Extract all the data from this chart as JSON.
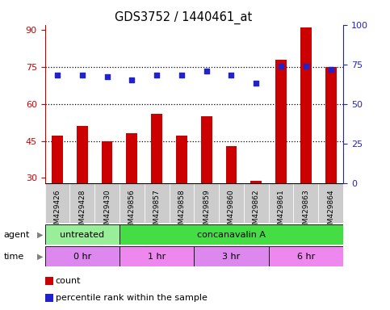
{
  "title": "GDS3752 / 1440461_at",
  "samples": [
    "GSM429426",
    "GSM429428",
    "GSM429430",
    "GSM429856",
    "GSM429857",
    "GSM429858",
    "GSM429859",
    "GSM429860",
    "GSM429862",
    "GSM429861",
    "GSM429863",
    "GSM429864"
  ],
  "count_values": [
    47,
    51,
    45,
    48,
    56,
    47,
    55,
    43,
    29,
    78,
    91,
    75
  ],
  "percentile_values": [
    68,
    68,
    67,
    65,
    68,
    68,
    71,
    68,
    63,
    74,
    74,
    72
  ],
  "ylim_left": [
    28,
    92
  ],
  "ylim_right": [
    0,
    100
  ],
  "yticks_left": [
    30,
    45,
    60,
    75,
    90
  ],
  "yticks_right": [
    0,
    25,
    50,
    75,
    100
  ],
  "hlines": [
    45,
    60,
    75
  ],
  "bar_color": "#cc0000",
  "dot_color": "#2222cc",
  "agent_groups": [
    {
      "label": "untreated",
      "start": 0,
      "end": 3,
      "color": "#99ee99"
    },
    {
      "label": "concanavalin A",
      "start": 3,
      "end": 12,
      "color": "#44dd44"
    }
  ],
  "time_groups": [
    {
      "label": "0 hr",
      "start": 0,
      "end": 3,
      "color": "#dd88ee"
    },
    {
      "label": "1 hr",
      "start": 3,
      "end": 6,
      "color": "#ee88ee"
    },
    {
      "label": "3 hr",
      "start": 6,
      "end": 9,
      "color": "#dd88ee"
    },
    {
      "label": "6 hr",
      "start": 9,
      "end": 12,
      "color": "#ee88ee"
    }
  ],
  "legend_items": [
    {
      "label": "count",
      "color": "#cc0000"
    },
    {
      "label": "percentile rank within the sample",
      "color": "#2222cc"
    }
  ],
  "tick_color_left": "#cc0000",
  "tick_color_right": "#2222cc",
  "sample_bg": "#cccccc",
  "plot_bg": "#ffffff",
  "bar_bottom": 28,
  "bar_width": 0.45
}
